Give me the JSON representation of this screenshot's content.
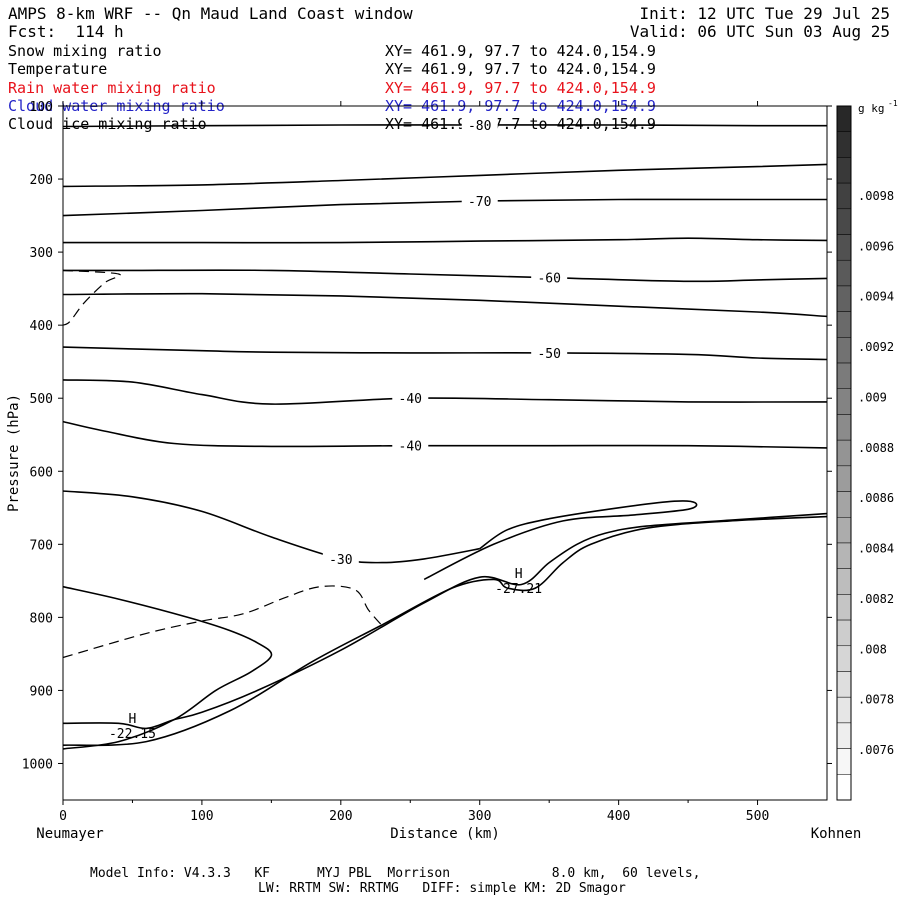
{
  "header": {
    "title": "AMPS 8-km WRF -- Qn Maud Land Coast window",
    "init": "Init: 12 UTC Tue 29 Jul 25",
    "fcst": "Fcst:  114 h",
    "valid": "Valid: 06 UTC Sun 03 Aug 25"
  },
  "fields": [
    {
      "name": "Snow mixing ratio",
      "xy": "XY= 461.9, 97.7 to 424.0,154.9",
      "color": "#000000"
    },
    {
      "name": "Temperature",
      "xy": "XY= 461.9, 97.7 to 424.0,154.9",
      "color": "#000000"
    },
    {
      "name": "Rain water mixing ratio",
      "xy": "XY= 461.9, 97.7 to 424.0,154.9",
      "color": "#e8121b"
    },
    {
      "name": "Cloud water mixing ratio",
      "xy": "XY= 461.9, 97.7 to 424.0,154.9",
      "color": "#2323c8"
    },
    {
      "name": "Cloud ice mixing ratio",
      "xy": "XY= 461.9, 97.7 to 424.0,154.9",
      "color": "#000000"
    }
  ],
  "footer": {
    "line1": "Model Info: V4.3.3   KF      MYJ PBL  Morrison             8.0 km,  60 levels,",
    "line2": "LW: RRTM SW: RRTMG   DIFF: simple KM: 2D Smagor"
  },
  "chart_data": {
    "type": "contour",
    "xlabel": "Distance (km)",
    "ylabel": "Pressure (hPa)",
    "xlim": [
      0,
      550
    ],
    "ylim": [
      1050,
      100
    ],
    "xticks": [
      0,
      100,
      200,
      300,
      400,
      500
    ],
    "yticks": [
      100,
      200,
      300,
      400,
      500,
      600,
      700,
      800,
      900,
      1000
    ],
    "left_endpoint": "Neumayer",
    "right_endpoint": "Kohnen",
    "colorbar": {
      "unit": "g kg",
      "unit_exp": "-1",
      "labels": [
        ".0098",
        ".0096",
        ".0094",
        ".0092",
        ".009",
        ".0088",
        ".0086",
        ".0084",
        ".0082",
        ".008",
        ".0078",
        ".0076"
      ],
      "levels": 27
    },
    "isotherms": [
      {
        "label": "-80",
        "points": [
          [
            0,
            128
          ],
          [
            100,
            127
          ],
          [
            200,
            126
          ],
          [
            300,
            126
          ],
          [
            400,
            126
          ],
          [
            500,
            127
          ],
          [
            550,
            127
          ]
        ]
      },
      {
        "label": "",
        "points": [
          [
            0,
            210
          ],
          [
            100,
            208
          ],
          [
            200,
            202
          ],
          [
            300,
            195
          ],
          [
            400,
            188
          ],
          [
            500,
            183
          ],
          [
            550,
            180
          ]
        ]
      },
      {
        "label": "-70",
        "points": [
          [
            0,
            250
          ],
          [
            100,
            243
          ],
          [
            200,
            235
          ],
          [
            300,
            230
          ],
          [
            400,
            228
          ],
          [
            500,
            228
          ],
          [
            550,
            228
          ]
        ]
      },
      {
        "label": "",
        "points": [
          [
            0,
            287
          ],
          [
            100,
            287
          ],
          [
            200,
            287
          ],
          [
            300,
            285
          ],
          [
            400,
            283
          ],
          [
            450,
            281
          ],
          [
            500,
            283
          ],
          [
            550,
            284
          ]
        ]
      },
      {
        "label": "",
        "points": [
          [
            0,
            325
          ],
          [
            50,
            325
          ]
        ]
      },
      {
        "label": "-60",
        "points": [
          [
            50,
            325
          ],
          [
            150,
            325
          ],
          [
            250,
            330
          ],
          [
            350,
            335
          ],
          [
            450,
            340
          ],
          [
            500,
            338
          ],
          [
            550,
            336
          ]
        ]
      },
      {
        "label": "",
        "points": [
          [
            0,
            358
          ],
          [
            100,
            357
          ],
          [
            200,
            360
          ],
          [
            300,
            366
          ],
          [
            400,
            374
          ],
          [
            500,
            382
          ],
          [
            550,
            388
          ]
        ]
      },
      {
        "label": "-50",
        "points": [
          [
            0,
            430
          ],
          [
            100,
            435
          ],
          [
            150,
            437
          ],
          [
            250,
            438
          ],
          [
            350,
            438
          ],
          [
            450,
            440
          ],
          [
            500,
            445
          ],
          [
            550,
            447
          ]
        ]
      },
      {
        "label": "-40",
        "points": [
          [
            0,
            475
          ],
          [
            50,
            478
          ],
          [
            100,
            495
          ],
          [
            150,
            508
          ],
          [
            250,
            500
          ],
          [
            350,
            502
          ],
          [
            450,
            505
          ],
          [
            550,
            505
          ]
        ]
      },
      {
        "label": "-40",
        "points": [
          [
            0,
            532
          ],
          [
            30,
            545
          ],
          [
            80,
            562
          ],
          [
            150,
            566
          ],
          [
            250,
            565
          ],
          [
            350,
            565
          ],
          [
            450,
            565
          ],
          [
            550,
            568
          ]
        ]
      },
      {
        "label": "-30",
        "points": [
          [
            0,
            627
          ],
          [
            50,
            635
          ],
          [
            100,
            655
          ],
          [
            150,
            690
          ],
          [
            200,
            720
          ],
          [
            230,
            725
          ],
          [
            260,
            720
          ],
          [
            300,
            706
          ]
        ]
      },
      {
        "label": "",
        "points": [
          [
            300,
            706
          ],
          [
            320,
            680
          ],
          [
            350,
            665
          ],
          [
            400,
            650
          ],
          [
            440,
            641
          ],
          [
            455,
            643
          ],
          [
            450,
            652
          ],
          [
            410,
            660
          ],
          [
            360,
            668
          ],
          [
            310,
            700
          ],
          [
            260,
            748
          ]
        ]
      },
      {
        "label": "",
        "points": [
          [
            0,
            945
          ],
          [
            40,
            945
          ],
          [
            60,
            952
          ],
          [
            80,
            940
          ],
          [
            100,
            930
          ],
          [
            140,
            900
          ],
          [
            200,
            845
          ],
          [
            260,
            780
          ],
          [
            300,
            745
          ],
          [
            330,
            755
          ],
          [
            350,
            725
          ],
          [
            370,
            700
          ],
          [
            390,
            685
          ],
          [
            420,
            675
          ],
          [
            480,
            667
          ],
          [
            550,
            658
          ]
        ]
      },
      {
        "label": "",
        "points": [
          [
            0,
            975
          ],
          [
            60,
            970
          ],
          [
            120,
            928
          ],
          [
            180,
            860
          ],
          [
            230,
            810
          ],
          [
            280,
            760
          ],
          [
            310,
            748
          ],
          [
            320,
            760
          ],
          [
            340,
            760
          ],
          [
            360,
            725
          ],
          [
            380,
            700
          ],
          [
            420,
            678
          ],
          [
            480,
            668
          ],
          [
            550,
            662
          ]
        ]
      },
      {
        "label": "",
        "points": [
          [
            0,
            758
          ],
          [
            40,
            775
          ],
          [
            90,
            800
          ],
          [
            120,
            818
          ],
          [
            140,
            835
          ],
          [
            150,
            852
          ],
          [
            135,
            875
          ],
          [
            110,
            900
          ],
          [
            80,
            940
          ],
          [
            40,
            970
          ],
          [
            0,
            980
          ]
        ]
      }
    ],
    "moisture_contours": [
      {
        "field": "Snow mixing ratio",
        "points": [
          [
            0,
            325
          ],
          [
            40,
            330
          ],
          [
            30,
            342
          ],
          [
            15,
            370
          ],
          [
            5,
            395
          ],
          [
            0,
            400
          ]
        ]
      },
      {
        "field": "Snow mixing ratio",
        "points": [
          [
            0,
            855
          ],
          [
            60,
            822
          ],
          [
            100,
            805
          ],
          [
            130,
            795
          ],
          [
            160,
            773
          ],
          [
            185,
            758
          ],
          [
            210,
            762
          ],
          [
            220,
            790
          ],
          [
            230,
            812
          ]
        ]
      }
    ],
    "highs": [
      {
        "label": "H",
        "value": "-22.15",
        "x": 50,
        "p": 958
      },
      {
        "label": "H",
        "value": "-27.21",
        "x": 328,
        "p": 760
      }
    ]
  }
}
